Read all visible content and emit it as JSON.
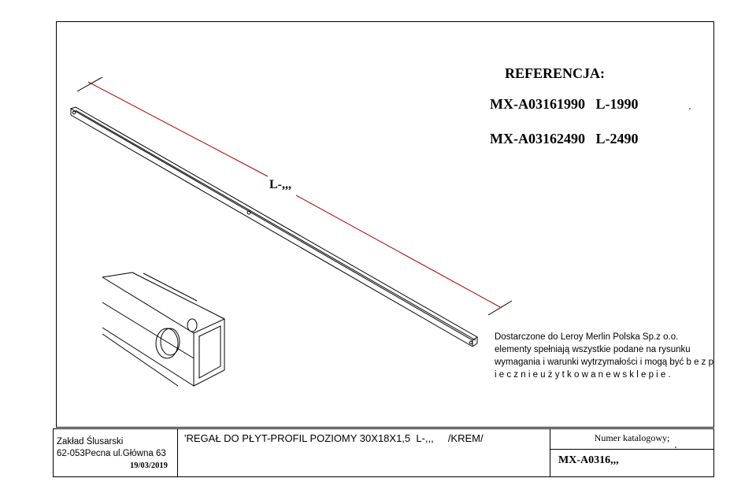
{
  "drawing": {
    "dimension_label": "L-,,,",
    "reference": {
      "heading": "REFERENCJA:",
      "lines": [
        "MX-A03161990   L-1990",
        "MX-A03162490   L-2490"
      ]
    },
    "note": "Dostarczone do Leroy Merlin Polska Sp.z o.o. elementy spełniają wszystkie podane na rysunku wymagania i warunki wytrzymałości i mogą być b e z p i e c z n i e   u ż y t k o w a n e   w   s k l e p i e ."
  },
  "title_block": {
    "company_line1": "Zakład Ślusarski",
    "company_line2": "62-053Pecna ul.Główna 63",
    "date": "19/03/2019",
    "product": "'REGAŁ DO PŁYT-PROFIL POZIOMY 30X18X1,5  L-,,,     /KREM/",
    "catalog_label": "Numer katalogowy;",
    "catalog_value": "MX-A0316,,,"
  }
}
